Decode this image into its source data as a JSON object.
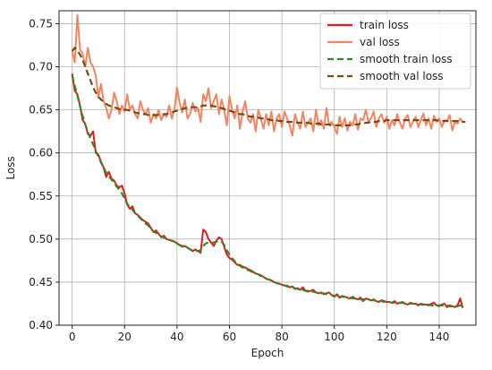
{
  "chart_data": {
    "type": "line",
    "title": "",
    "xlabel": "Epoch",
    "ylabel": "Loss",
    "xlim": [
      -5,
      154
    ],
    "ylim": [
      0.4,
      0.765
    ],
    "xticks": [
      0,
      20,
      40,
      60,
      80,
      100,
      120,
      140
    ],
    "yticks": [
      0.4,
      0.45,
      0.5,
      0.55,
      0.6,
      0.65,
      0.7,
      0.75
    ],
    "xtick_labels": [
      "0",
      "20",
      "40",
      "60",
      "80",
      "100",
      "120",
      "140"
    ],
    "ytick_labels": [
      "0.40",
      "0.45",
      "0.50",
      "0.55",
      "0.60",
      "0.65",
      "0.70",
      "0.75"
    ],
    "grid": true,
    "legend_position": "top-right",
    "series": [
      {
        "name": "train loss",
        "color": "#e41a1c",
        "style": "solid",
        "x_start": 0,
        "values": [
          0.692,
          0.672,
          0.668,
          0.655,
          0.638,
          0.634,
          0.622,
          0.62,
          0.625,
          0.6,
          0.598,
          0.59,
          0.583,
          0.572,
          0.578,
          0.57,
          0.568,
          0.562,
          0.56,
          0.562,
          0.553,
          0.54,
          0.535,
          0.538,
          0.53,
          0.528,
          0.525,
          0.522,
          0.52,
          0.518,
          0.513,
          0.508,
          0.51,
          0.506,
          0.502,
          0.504,
          0.5,
          0.499,
          0.498,
          0.497,
          0.495,
          0.493,
          0.491,
          0.492,
          0.49,
          0.488,
          0.486,
          0.488,
          0.486,
          0.484,
          0.511,
          0.508,
          0.5,
          0.496,
          0.492,
          0.498,
          0.502,
          0.5,
          0.491,
          0.482,
          0.478,
          0.476,
          0.473,
          0.47,
          0.47,
          0.468,
          0.467,
          0.465,
          0.464,
          0.462,
          0.46,
          0.459,
          0.458,
          0.456,
          0.454,
          0.453,
          0.452,
          0.45,
          0.449,
          0.448,
          0.447,
          0.446,
          0.446,
          0.444,
          0.445,
          0.442,
          0.443,
          0.441,
          0.444,
          0.44,
          0.439,
          0.44,
          0.441,
          0.438,
          0.437,
          0.438,
          0.436,
          0.437,
          0.438,
          0.435,
          0.433,
          0.436,
          0.432,
          0.434,
          0.433,
          0.432,
          0.431,
          0.433,
          0.431,
          0.43,
          0.432,
          0.428,
          0.431,
          0.43,
          0.429,
          0.43,
          0.428,
          0.427,
          0.429,
          0.428,
          0.427,
          0.427,
          0.426,
          0.428,
          0.425,
          0.426,
          0.427,
          0.425,
          0.424,
          0.426,
          0.425,
          0.425,
          0.423,
          0.425,
          0.424,
          0.424,
          0.423,
          0.425,
          0.426,
          0.423,
          0.422,
          0.424,
          0.425,
          0.421,
          0.423,
          0.422,
          0.421,
          0.423,
          0.431,
          0.42
        ]
      },
      {
        "name": "val loss",
        "color": "#f4845f",
        "style": "solid",
        "x_start": 0,
        "values": [
          0.718,
          0.705,
          0.76,
          0.72,
          0.715,
          0.7,
          0.722,
          0.705,
          0.7,
          0.69,
          0.665,
          0.68,
          0.66,
          0.652,
          0.64,
          0.65,
          0.67,
          0.66,
          0.645,
          0.655,
          0.648,
          0.668,
          0.65,
          0.655,
          0.645,
          0.64,
          0.66,
          0.65,
          0.645,
          0.652,
          0.635,
          0.645,
          0.64,
          0.65,
          0.638,
          0.645,
          0.642,
          0.655,
          0.64,
          0.65,
          0.676,
          0.658,
          0.647,
          0.662,
          0.64,
          0.645,
          0.658,
          0.648,
          0.652,
          0.636,
          0.668,
          0.66,
          0.675,
          0.652,
          0.66,
          0.668,
          0.645,
          0.662,
          0.65,
          0.632,
          0.666,
          0.65,
          0.64,
          0.655,
          0.628,
          0.648,
          0.66,
          0.64,
          0.635,
          0.645,
          0.625,
          0.65,
          0.64,
          0.628,
          0.645,
          0.632,
          0.648,
          0.625,
          0.64,
          0.645,
          0.63,
          0.648,
          0.64,
          0.632,
          0.62,
          0.645,
          0.635,
          0.628,
          0.648,
          0.63,
          0.635,
          0.64,
          0.625,
          0.65,
          0.632,
          0.638,
          0.628,
          0.652,
          0.632,
          0.636,
          0.63,
          0.622,
          0.642,
          0.63,
          0.64,
          0.626,
          0.636,
          0.632,
          0.645,
          0.627,
          0.64,
          0.638,
          0.65,
          0.636,
          0.64,
          0.648,
          0.63,
          0.64,
          0.645,
          0.635,
          0.642,
          0.628,
          0.638,
          0.632,
          0.645,
          0.635,
          0.628,
          0.64,
          0.644,
          0.63,
          0.636,
          0.642,
          0.63,
          0.638,
          0.646,
          0.632,
          0.64,
          0.628,
          0.643,
          0.636,
          0.64,
          0.63,
          0.638,
          0.637,
          0.644,
          0.626,
          0.636,
          0.634,
          0.64,
          0.636
        ]
      },
      {
        "name": "smooth train loss",
        "color": "#2e8b1e",
        "style": "dashed",
        "x_start": 0,
        "values": [
          0.69,
          0.678,
          0.667,
          0.654,
          0.643,
          0.633,
          0.624,
          0.617,
          0.61,
          0.602,
          0.596,
          0.589,
          0.583,
          0.577,
          0.573,
          0.569,
          0.565,
          0.561,
          0.557,
          0.553,
          0.547,
          0.541,
          0.537,
          0.534,
          0.53,
          0.527,
          0.524,
          0.521,
          0.518,
          0.516,
          0.512,
          0.509,
          0.507,
          0.505,
          0.503,
          0.502,
          0.5,
          0.499,
          0.498,
          0.497,
          0.495,
          0.493,
          0.492,
          0.491,
          0.49,
          0.488,
          0.487,
          0.487,
          0.486,
          0.487,
          0.492,
          0.495,
          0.496,
          0.496,
          0.496,
          0.497,
          0.498,
          0.497,
          0.493,
          0.487,
          0.482,
          0.478,
          0.474,
          0.471,
          0.469,
          0.467,
          0.466,
          0.464,
          0.463,
          0.461,
          0.46,
          0.459,
          0.457,
          0.456,
          0.454,
          0.453,
          0.452,
          0.45,
          0.449,
          0.448,
          0.447,
          0.446,
          0.445,
          0.444,
          0.444,
          0.443,
          0.442,
          0.441,
          0.441,
          0.44,
          0.44,
          0.439,
          0.439,
          0.438,
          0.438,
          0.437,
          0.437,
          0.436,
          0.436,
          0.435,
          0.434,
          0.434,
          0.433,
          0.433,
          0.433,
          0.432,
          0.432,
          0.431,
          0.431,
          0.431,
          0.43,
          0.43,
          0.43,
          0.429,
          0.429,
          0.429,
          0.428,
          0.428,
          0.428,
          0.427,
          0.427,
          0.427,
          0.426,
          0.426,
          0.426,
          0.426,
          0.426,
          0.425,
          0.425,
          0.425,
          0.425,
          0.424,
          0.424,
          0.424,
          0.424,
          0.424,
          0.424,
          0.423,
          0.423,
          0.423,
          0.423,
          0.423,
          0.423,
          0.423,
          0.422,
          0.422,
          0.422,
          0.422,
          0.423,
          0.422
        ]
      },
      {
        "name": "smooth val loss",
        "color": "#7b4a12",
        "style": "dashed",
        "x_start": 0,
        "values": [
          0.718,
          0.722,
          0.719,
          0.714,
          0.708,
          0.7,
          0.692,
          0.684,
          0.676,
          0.67,
          0.665,
          0.662,
          0.659,
          0.657,
          0.655,
          0.654,
          0.653,
          0.652,
          0.651,
          0.65,
          0.65,
          0.65,
          0.649,
          0.648,
          0.647,
          0.646,
          0.646,
          0.645,
          0.645,
          0.644,
          0.644,
          0.644,
          0.644,
          0.644,
          0.644,
          0.645,
          0.645,
          0.646,
          0.647,
          0.648,
          0.649,
          0.65,
          0.651,
          0.652,
          0.652,
          0.653,
          0.653,
          0.653,
          0.653,
          0.654,
          0.655,
          0.655,
          0.655,
          0.655,
          0.654,
          0.654,
          0.653,
          0.652,
          0.651,
          0.65,
          0.649,
          0.648,
          0.647,
          0.646,
          0.645,
          0.645,
          0.644,
          0.643,
          0.642,
          0.642,
          0.641,
          0.641,
          0.64,
          0.64,
          0.639,
          0.639,
          0.638,
          0.638,
          0.638,
          0.637,
          0.637,
          0.637,
          0.636,
          0.636,
          0.636,
          0.636,
          0.635,
          0.635,
          0.635,
          0.635,
          0.635,
          0.634,
          0.634,
          0.634,
          0.634,
          0.633,
          0.633,
          0.633,
          0.633,
          0.632,
          0.632,
          0.632,
          0.632,
          0.632,
          0.632,
          0.632,
          0.632,
          0.633,
          0.633,
          0.633,
          0.634,
          0.634,
          0.635,
          0.635,
          0.636,
          0.636,
          0.636,
          0.637,
          0.637,
          0.637,
          0.638,
          0.638,
          0.638,
          0.638,
          0.638,
          0.638,
          0.638,
          0.638,
          0.638,
          0.638,
          0.638,
          0.638,
          0.638,
          0.638,
          0.638,
          0.638,
          0.638,
          0.638,
          0.638,
          0.638,
          0.637,
          0.637,
          0.637,
          0.637,
          0.637,
          0.637,
          0.637,
          0.637,
          0.636,
          0.636,
          0.636
        ]
      }
    ]
  }
}
